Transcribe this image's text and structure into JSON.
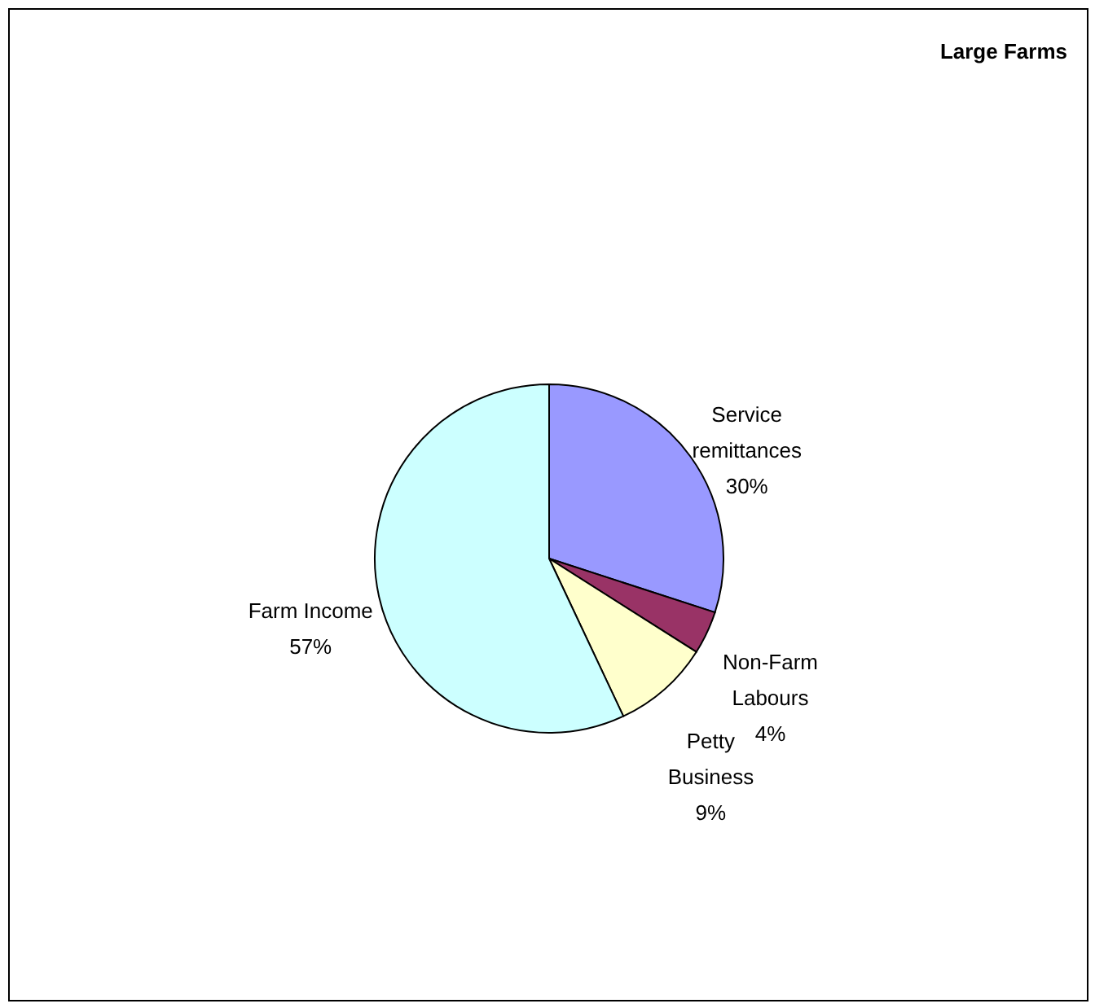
{
  "chart_data": {
    "type": "pie",
    "title": "Large Farms",
    "categories": [
      "Service remittances",
      "Non-Farm Labours",
      "Petty Business",
      "Farm Income"
    ],
    "values": [
      30,
      4,
      9,
      57
    ],
    "value_labels": [
      "30%",
      "4%",
      "9%",
      "57%"
    ],
    "colors": [
      "#9999ff",
      "#993366",
      "#ffffcc",
      "#ccffff"
    ],
    "legend": false
  }
}
